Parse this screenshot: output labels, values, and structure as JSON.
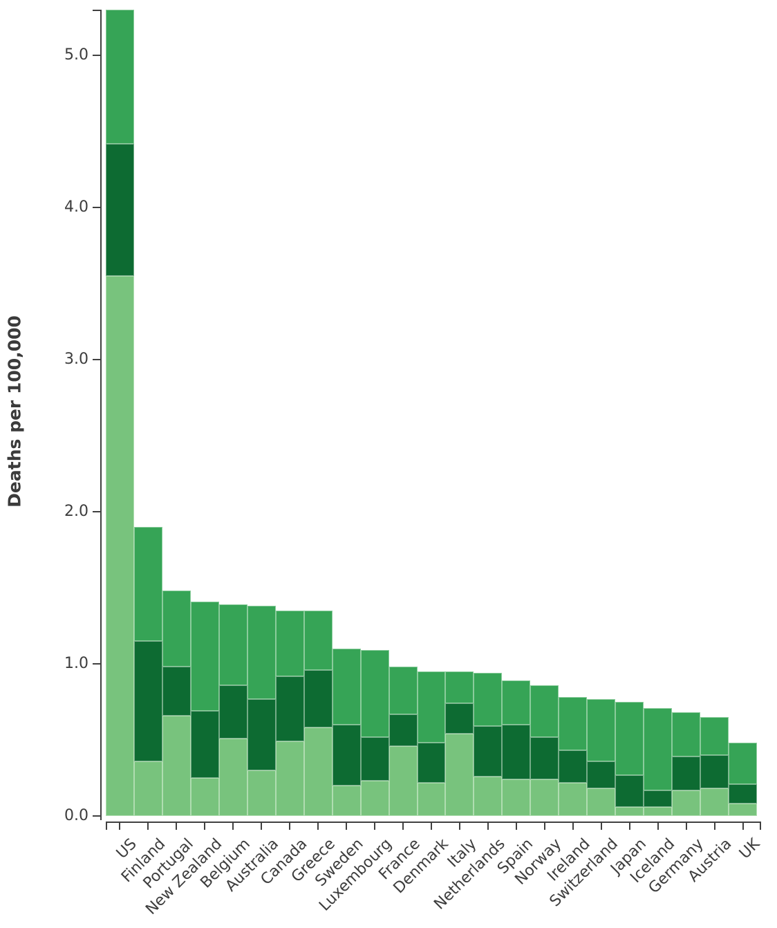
{
  "chart_data": {
    "type": "bar",
    "stacked": true,
    "title": "",
    "xlabel": "",
    "ylabel": "Deaths per 100,000",
    "ylim": [
      0,
      5.3
    ],
    "yticks": [
      0,
      1,
      2,
      3,
      4,
      5
    ],
    "ytick_labels": [
      "0.0",
      "1.0",
      "2.0",
      "3.0",
      "4.0",
      "5.0"
    ],
    "grid": false,
    "legend_position": "none",
    "categories": [
      "US",
      "Finland",
      "Portugal",
      "New Zealand",
      "Belgium",
      "Australia",
      "Canada",
      "Greece",
      "Sweden",
      "Luxembourg",
      "France",
      "Denmark",
      "Italy",
      "Netherlands",
      "Spain",
      "Norway",
      "Ireland",
      "Switzerland",
      "Japan",
      "Iceland",
      "Germany",
      "Austria",
      "UK"
    ],
    "series": [
      {
        "name": "bottom-segment-light-green",
        "color": "#78c37d",
        "values": [
          3.55,
          0.36,
          0.66,
          0.25,
          0.51,
          0.3,
          0.49,
          0.58,
          0.2,
          0.23,
          0.46,
          0.22,
          0.54,
          0.26,
          0.24,
          0.24,
          0.22,
          0.18,
          0.06,
          0.06,
          0.17,
          0.18,
          0.08
        ]
      },
      {
        "name": "middle-segment-dark-green",
        "color": "#0d6b32",
        "values": [
          0.87,
          0.79,
          0.32,
          0.44,
          0.35,
          0.47,
          0.43,
          0.38,
          0.4,
          0.29,
          0.21,
          0.26,
          0.2,
          0.33,
          0.36,
          0.28,
          0.21,
          0.18,
          0.21,
          0.11,
          0.22,
          0.22,
          0.13
        ]
      },
      {
        "name": "top-segment-medium-green",
        "color": "#36a456",
        "values": [
          0.88,
          0.75,
          0.5,
          0.72,
          0.53,
          0.61,
          0.43,
          0.39,
          0.5,
          0.57,
          0.31,
          0.47,
          0.21,
          0.35,
          0.29,
          0.34,
          0.35,
          0.41,
          0.48,
          0.54,
          0.29,
          0.25,
          0.27
        ]
      }
    ],
    "totals": [
      5.3,
      1.9,
      1.48,
      1.41,
      1.39,
      1.38,
      1.35,
      1.35,
      1.1,
      1.09,
      0.98,
      0.95,
      0.95,
      0.94,
      0.89,
      0.86,
      0.78,
      0.77,
      0.75,
      0.71,
      0.68,
      0.65,
      0.48
    ]
  },
  "axis": {
    "line_color": "#404040",
    "text_color": "#3d3d3d"
  }
}
